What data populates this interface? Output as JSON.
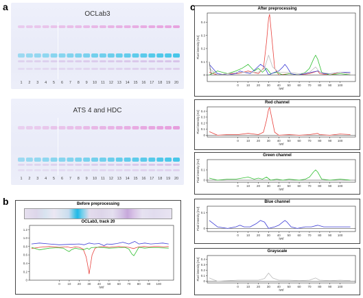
{
  "panels": {
    "a": "a",
    "b": "b",
    "c": "c"
  },
  "plate1": {
    "title": "OCLab3"
  },
  "plate2": {
    "title": "ATS 4 and HDC"
  },
  "lanes": [
    "1",
    "2",
    "3",
    "4",
    "5",
    "6",
    "7",
    "8",
    "9",
    "10",
    "11",
    "12",
    "13",
    "14",
    "15",
    "16",
    "17",
    "18",
    "19",
    "20"
  ],
  "chart_data": [
    {
      "type": "line",
      "title": "Before preprocessing",
      "subtitle": "OCLab3, track 20",
      "xlabel": "hRf",
      "ylabel": "",
      "xlim": [
        -30,
        115
      ],
      "ylim": [
        0,
        1.3
      ],
      "xticks": [
        0,
        10,
        20,
        30,
        40,
        50,
        60,
        70,
        80,
        90,
        100
      ],
      "yticks": [
        0,
        0.2,
        0.4,
        0.6,
        0.8,
        1.0,
        1.2
      ],
      "series": [
        {
          "color": "#e8413c",
          "x": [
            -28,
            -20,
            -10,
            0,
            8,
            12,
            16,
            20,
            24,
            27,
            29,
            30,
            31,
            33,
            36,
            40,
            45,
            50,
            55,
            60,
            65,
            70,
            73,
            75,
            77,
            80,
            85,
            90,
            95,
            100,
            105,
            110
          ],
          "y": [
            0.75,
            0.78,
            0.8,
            0.78,
            0.79,
            0.77,
            0.79,
            0.78,
            0.74,
            0.55,
            0.3,
            0.15,
            0.3,
            0.6,
            0.76,
            0.79,
            0.8,
            0.78,
            0.79,
            0.8,
            0.79,
            0.78,
            0.76,
            0.75,
            0.77,
            0.79,
            0.8,
            0.79,
            0.8,
            0.8,
            0.79,
            0.8
          ]
        },
        {
          "color": "#2fbf2f",
          "x": [
            -28,
            -20,
            -10,
            -2,
            4,
            8,
            10,
            12,
            16,
            20,
            24,
            28,
            30,
            32,
            36,
            40,
            50,
            60,
            66,
            70,
            73,
            75,
            77,
            80,
            86,
            90,
            100,
            110
          ],
          "y": [
            0.78,
            0.72,
            0.76,
            0.77,
            0.76,
            0.7,
            0.68,
            0.72,
            0.76,
            0.74,
            0.72,
            0.76,
            0.73,
            0.77,
            0.78,
            0.78,
            0.76,
            0.77,
            0.78,
            0.74,
            0.62,
            0.58,
            0.66,
            0.78,
            0.76,
            0.77,
            0.77,
            0.76
          ]
        },
        {
          "color": "#3b3bd6",
          "x": [
            -28,
            -20,
            -10,
            0,
            10,
            20,
            25,
            30,
            35,
            40,
            45,
            48,
            52,
            58,
            64,
            70,
            76,
            80,
            86,
            92,
            98,
            104,
            110
          ],
          "y": [
            0.86,
            0.88,
            0.86,
            0.84,
            0.85,
            0.86,
            0.84,
            0.88,
            0.86,
            0.87,
            0.82,
            0.86,
            0.85,
            0.87,
            0.9,
            0.86,
            0.92,
            0.86,
            0.88,
            0.86,
            0.87,
            0.88,
            0.86
          ]
        }
      ]
    },
    {
      "type": "line",
      "title": "After preprocessing",
      "xlabel": "hRf",
      "ylabel": "Pixel intensity [AU]",
      "xlim": [
        -30,
        115
      ],
      "ylim": [
        -0.05,
        0.47
      ],
      "xticks": [
        0,
        10,
        20,
        30,
        40,
        50,
        60,
        70,
        80,
        90,
        100
      ],
      "yticks": [
        0,
        0.1,
        0.2,
        0.3,
        0.4
      ],
      "series": [
        {
          "color": "#e8413c",
          "x": [
            -28,
            -20,
            -10,
            0,
            10,
            20,
            25,
            28,
            30,
            31,
            33,
            36,
            40,
            50,
            60,
            70,
            78,
            80,
            90,
            100,
            110
          ],
          "y": [
            0.02,
            0.0,
            0.01,
            0.01,
            0.03,
            0.01,
            0.05,
            0.25,
            0.43,
            0.46,
            0.3,
            0.05,
            0.0,
            0.01,
            0.0,
            0.01,
            0.03,
            0.01,
            0.0,
            0.02,
            0.01
          ]
        },
        {
          "color": "#2fbf2f",
          "x": [
            -28,
            -20,
            -10,
            -2,
            4,
            10,
            16,
            20,
            24,
            28,
            32,
            38,
            44,
            50,
            60,
            66,
            70,
            74,
            76,
            78,
            82,
            90,
            100,
            110
          ],
          "y": [
            0.0,
            0.03,
            0.01,
            0.03,
            0.05,
            0.08,
            0.03,
            0.05,
            0.02,
            0.05,
            0.01,
            0.02,
            0.0,
            0.01,
            0.0,
            0.02,
            0.05,
            0.12,
            0.15,
            0.12,
            0.02,
            0.0,
            0.01,
            0.0
          ]
        },
        {
          "color": "#3b3bd6",
          "x": [
            -28,
            -20,
            -10,
            -2,
            2,
            6,
            12,
            18,
            22,
            26,
            30,
            36,
            40,
            44,
            46,
            48,
            52,
            58,
            66,
            72,
            78,
            84,
            90,
            100,
            110
          ],
          "y": [
            0.08,
            0.01,
            0.0,
            0.01,
            0.03,
            0.02,
            0.01,
            0.05,
            0.08,
            0.06,
            0.0,
            0.02,
            0.03,
            0.06,
            0.08,
            0.06,
            0.01,
            0.0,
            0.01,
            0.02,
            0.03,
            0.01,
            0.01,
            0.02,
            0.02
          ]
        },
        {
          "color": "#b9b9b9",
          "x": [
            -28,
            -20,
            -10,
            0,
            10,
            20,
            26,
            30,
            34,
            40,
            50,
            60,
            70,
            76,
            80,
            90,
            100,
            110
          ],
          "y": [
            0.05,
            0.0,
            0.01,
            0.02,
            0.02,
            0.02,
            0.05,
            0.15,
            0.06,
            0.02,
            0.02,
            0.01,
            0.02,
            0.06,
            0.02,
            0.01,
            0.02,
            0.01
          ]
        },
        {
          "color": "#6b6b6b",
          "x": [
            -28,
            -27,
            -26,
            -20,
            0,
            110
          ],
          "y": [
            0.1,
            0.04,
            0.0,
            0.0,
            0.0,
            0.0
          ]
        }
      ]
    },
    {
      "type": "line",
      "title": "Red channel",
      "xlabel": "hRf",
      "ylabel": "Pixel intensity [AU]",
      "xlim": [
        -30,
        115
      ],
      "ylim": [
        -0.03,
        0.47
      ],
      "xticks": [
        0,
        10,
        20,
        30,
        40,
        50,
        60,
        70,
        80,
        90,
        100
      ],
      "yticks": [
        0,
        0.1,
        0.2,
        0.3,
        0.4
      ],
      "series": [
        {
          "color": "#e8413c",
          "x": [
            -28,
            -20,
            -10,
            0,
            10,
            20,
            25,
            28,
            30,
            31,
            33,
            36,
            40,
            50,
            60,
            70,
            78,
            80,
            90,
            100,
            110
          ],
          "y": [
            0.06,
            0.0,
            0.01,
            0.01,
            0.03,
            0.01,
            0.05,
            0.25,
            0.43,
            0.46,
            0.3,
            0.05,
            0.0,
            0.01,
            0.0,
            0.01,
            0.03,
            0.01,
            0.0,
            0.02,
            0.01
          ]
        }
      ]
    },
    {
      "type": "line",
      "title": "Green channel",
      "xlabel": "hRf",
      "ylabel": "Pixel intensity [AU]",
      "xlim": [
        -30,
        115
      ],
      "ylim": [
        -0.02,
        0.2
      ],
      "xticks": [
        0,
        10,
        20,
        30,
        40,
        50,
        60,
        70,
        80,
        90,
        100
      ],
      "yticks": [
        0,
        0.1
      ],
      "series": [
        {
          "color": "#2fbf2f",
          "x": [
            -28,
            -20,
            -10,
            -2,
            4,
            10,
            16,
            20,
            24,
            28,
            32,
            38,
            44,
            50,
            60,
            66,
            70,
            74,
            76,
            78,
            82,
            90,
            100,
            110
          ],
          "y": [
            0.02,
            0.0,
            0.01,
            0.01,
            0.02,
            0.03,
            0.01,
            0.02,
            0.01,
            0.03,
            0.0,
            0.01,
            0.0,
            0.01,
            0.0,
            0.01,
            0.03,
            0.08,
            0.1,
            0.08,
            0.01,
            0.0,
            0.01,
            0.0
          ]
        }
      ]
    },
    {
      "type": "line",
      "title": "Blue channel",
      "xlabel": "hRf",
      "ylabel": "Pixel intensity [AU]",
      "xlim": [
        -30,
        115
      ],
      "ylim": [
        -0.02,
        0.14
      ],
      "xticks": [
        0,
        10,
        20,
        30,
        40,
        50,
        60,
        70,
        80,
        90,
        100
      ],
      "yticks": [
        0,
        0.1
      ],
      "series": [
        {
          "color": "#3b3bd6",
          "x": [
            -28,
            -20,
            -10,
            -2,
            2,
            6,
            12,
            18,
            22,
            26,
            30,
            36,
            40,
            44,
            46,
            48,
            52,
            58,
            66,
            72,
            78,
            84,
            90,
            100,
            110
          ],
          "y": [
            0.05,
            0.01,
            0.0,
            0.01,
            0.02,
            0.01,
            0.01,
            0.03,
            0.05,
            0.04,
            0.0,
            0.01,
            0.02,
            0.04,
            0.05,
            0.04,
            0.01,
            0.0,
            0.01,
            0.01,
            0.02,
            0.01,
            0.01,
            0.01,
            0.01
          ]
        }
      ]
    },
    {
      "type": "line",
      "title": "Grayscale",
      "xlabel": "hRf",
      "ylabel": "Pixel intensity [AU]",
      "xlim": [
        -30,
        115
      ],
      "ylim": [
        -0.03,
        0.47
      ],
      "xticks": [
        0,
        10,
        20,
        30,
        40,
        50,
        60,
        70,
        80,
        90,
        100
      ],
      "yticks": [
        0,
        0.1,
        0.2,
        0.3,
        0.4
      ],
      "series": [
        {
          "color": "#b9b9b9",
          "x": [
            -28,
            -20,
            -10,
            0,
            10,
            20,
            26,
            30,
            34,
            40,
            50,
            60,
            70,
            76,
            80,
            90,
            100,
            110
          ],
          "y": [
            0.06,
            0.0,
            0.01,
            0.02,
            0.02,
            0.02,
            0.05,
            0.15,
            0.06,
            0.02,
            0.02,
            0.01,
            0.02,
            0.06,
            0.02,
            0.01,
            0.02,
            0.01
          ]
        }
      ]
    }
  ]
}
